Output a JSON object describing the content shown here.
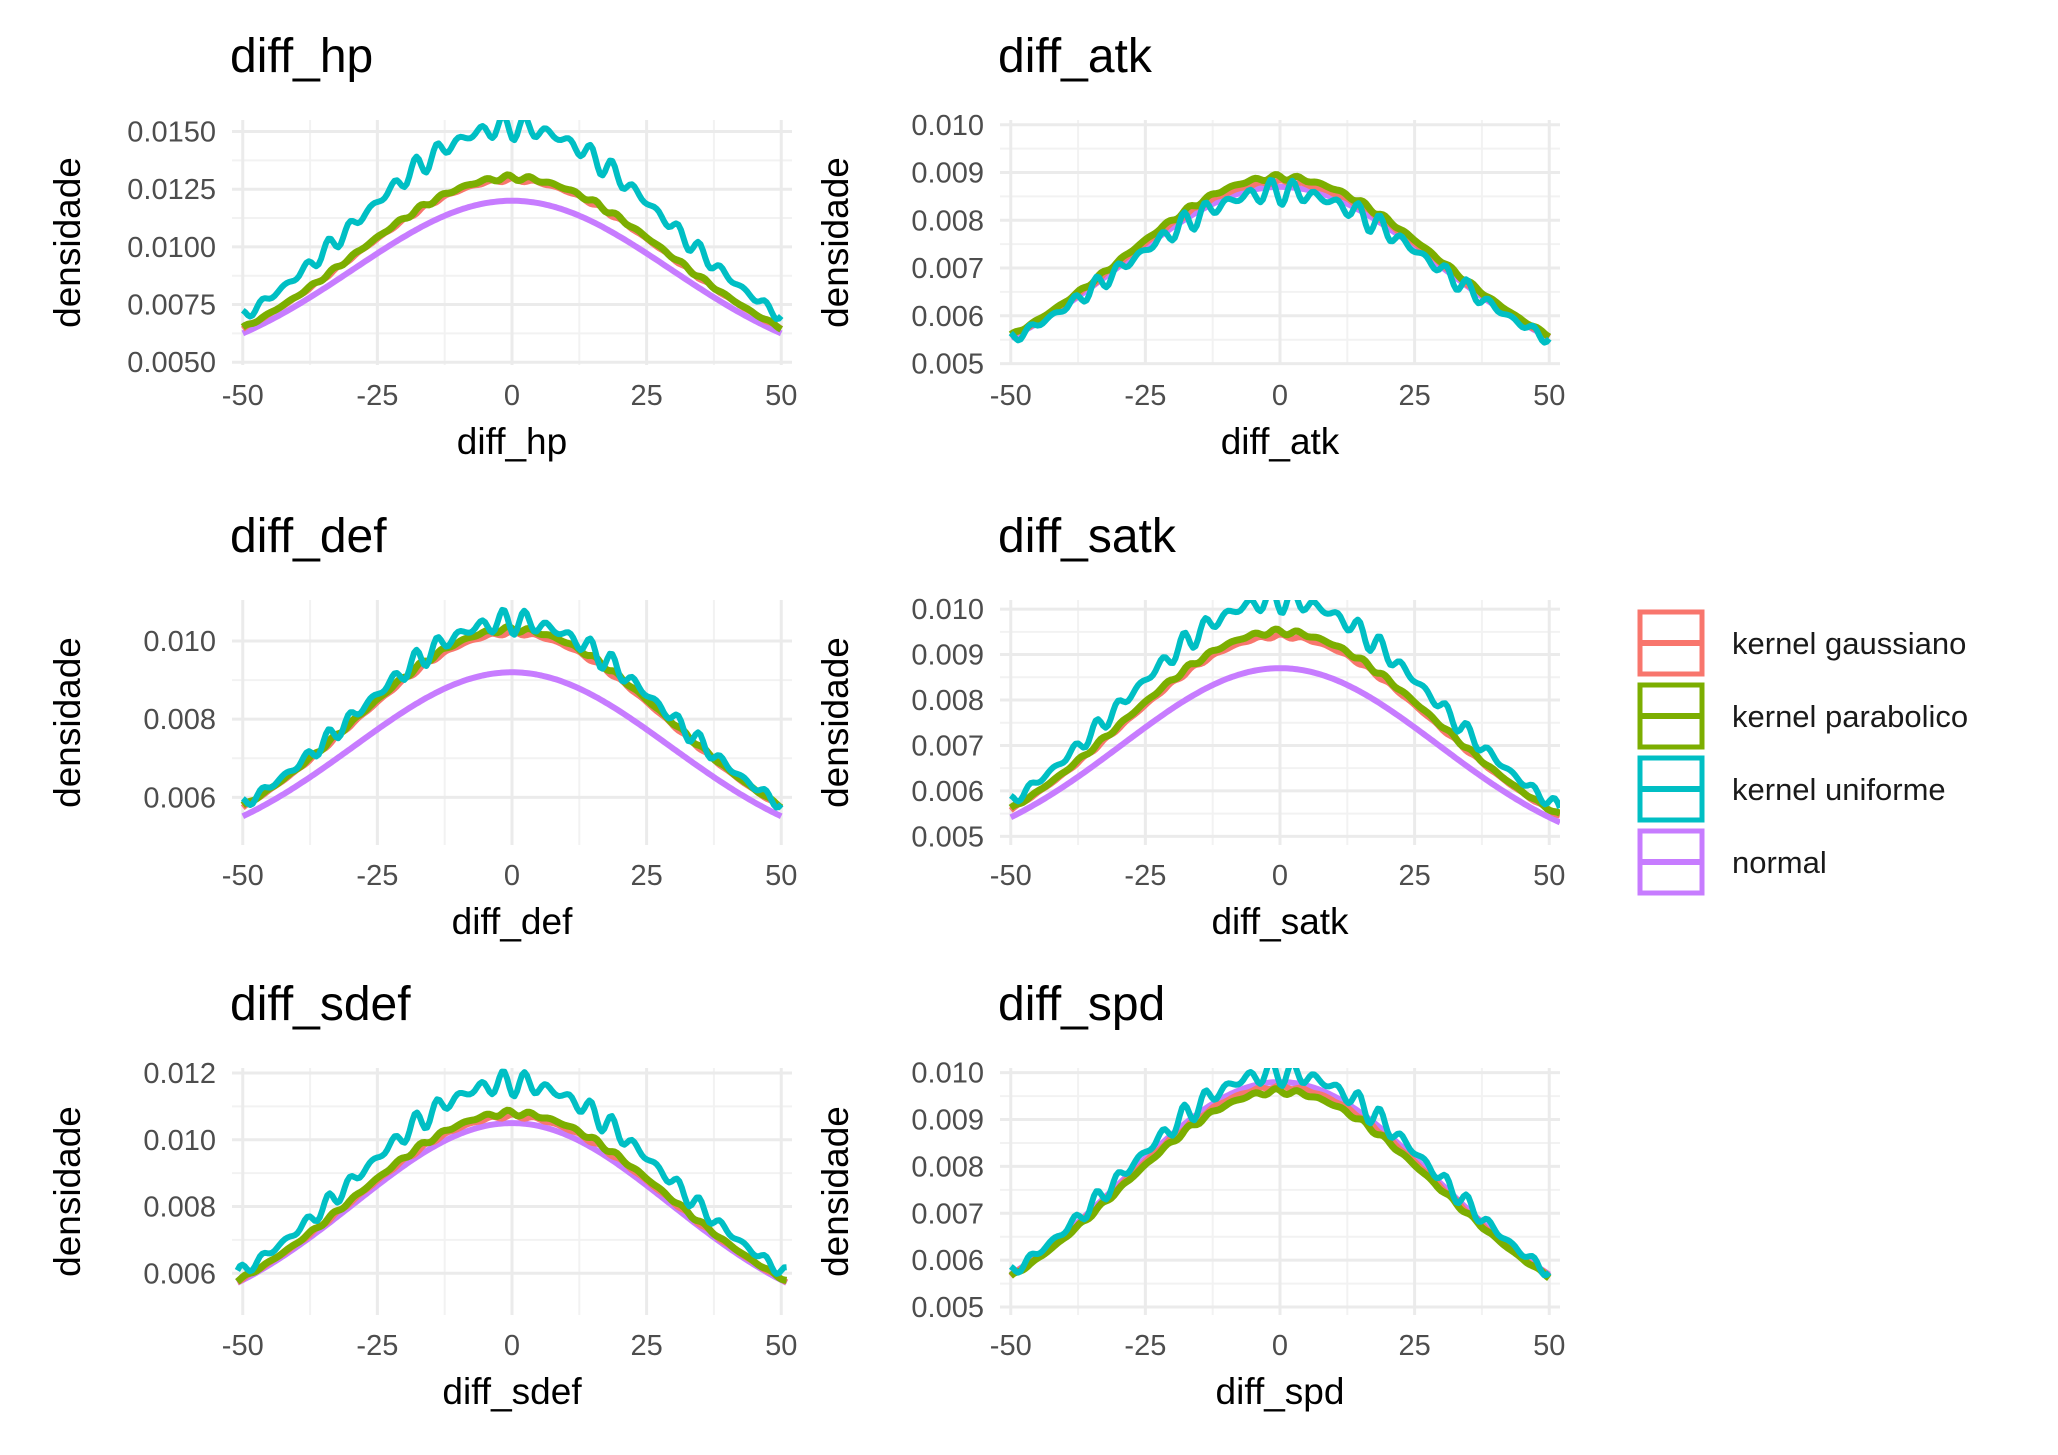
{
  "legend": {
    "items": [
      {
        "label": "kernel gaussiano",
        "color": "#F8766D"
      },
      {
        "label": "kernel parabolico",
        "color": "#7CAE00"
      },
      {
        "label": "kernel uniforme",
        "color": "#00BFC4"
      },
      {
        "label": "normal",
        "color": "#C77CFF"
      }
    ]
  },
  "chart_data": [
    {
      "type": "line",
      "title": "diff_hp",
      "xlabel": "diff_hp",
      "ylabel": "densidade",
      "xlim": [
        -52,
        52
      ],
      "ylim": [
        0.00488,
        0.0155
      ],
      "xticks": [
        -50,
        -25,
        0,
        25,
        50
      ],
      "yticks": [
        0.005,
        0.0075,
        0.01,
        0.0125,
        0.015
      ],
      "ytick_labels": [
        "0.0050",
        "0.0075",
        "0.0100",
        "0.0125",
        "0.0150"
      ],
      "grid": true,
      "x_range": [
        -50,
        50
      ],
      "series": [
        {
          "name": "kernel gaussiano",
          "peak": 0.0129
        },
        {
          "name": "kernel parabolico",
          "peak": 0.013
        },
        {
          "name": "kernel uniforme",
          "peak": 0.0152
        },
        {
          "name": "normal",
          "peak": 0.012
        }
      ]
    },
    {
      "type": "line",
      "title": "diff_atk",
      "xlabel": "diff_atk",
      "ylabel": "densidade",
      "xlim": [
        -52,
        52
      ],
      "ylim": [
        0.00497,
        0.0101
      ],
      "xticks": [
        -50,
        -25,
        0,
        25,
        50
      ],
      "yticks": [
        0.005,
        0.006,
        0.007,
        0.008,
        0.009,
        0.01
      ],
      "ytick_labels": [
        "0.005",
        "0.006",
        "0.007",
        "0.008",
        "0.009",
        "0.010"
      ],
      "grid": true,
      "x_range": [
        -50,
        50
      ],
      "series": [
        {
          "name": "kernel gaussiano",
          "peak": 0.0088
        },
        {
          "name": "kernel parabolico",
          "peak": 0.0089
        },
        {
          "name": "kernel uniforme",
          "peak": 0.0086
        },
        {
          "name": "normal",
          "peak": 0.0087
        }
      ]
    },
    {
      "type": "line",
      "title": "diff_def",
      "xlabel": "diff_def",
      "ylabel": "densidade",
      "xlim": [
        -52,
        52
      ],
      "ylim": [
        0.00478,
        0.01105
      ],
      "xticks": [
        -50,
        -25,
        0,
        25,
        50
      ],
      "yticks": [
        0.006,
        0.008,
        0.01
      ],
      "ytick_labels": [
        "0.006",
        "0.008",
        "0.010"
      ],
      "grid": true,
      "x_range": [
        -50,
        50
      ],
      "series": [
        {
          "name": "kernel gaussiano",
          "peak": 0.0102
        },
        {
          "name": "kernel parabolico",
          "peak": 0.0103
        },
        {
          "name": "kernel uniforme",
          "peak": 0.0105
        },
        {
          "name": "normal",
          "peak": 0.0092
        }
      ]
    },
    {
      "type": "line",
      "title": "diff_satk",
      "xlabel": "diff_satk",
      "ylabel": "densidade",
      "xlim": [
        -52,
        52
      ],
      "ylim": [
        0.00481,
        0.0102
      ],
      "xticks": [
        -50,
        -25,
        0,
        25,
        50
      ],
      "yticks": [
        0.005,
        0.006,
        0.007,
        0.008,
        0.009,
        0.01
      ],
      "ytick_labels": [
        "0.005",
        "0.006",
        "0.007",
        "0.008",
        "0.009",
        "0.010"
      ],
      "grid": true,
      "x_range": [
        -50,
        52
      ],
      "series": [
        {
          "name": "kernel gaussiano",
          "peak": 0.0094
        },
        {
          "name": "kernel parabolico",
          "peak": 0.0095
        },
        {
          "name": "kernel uniforme",
          "peak": 0.0102
        },
        {
          "name": "normal",
          "peak": 0.0087
        }
      ]
    },
    {
      "type": "line",
      "title": "diff_sdef",
      "xlabel": "diff_sdef",
      "ylabel": "densidade",
      "xlim": [
        -52,
        52
      ],
      "ylim": [
        0.00475,
        0.01215
      ],
      "xticks": [
        -50,
        -25,
        0,
        25,
        50
      ],
      "yticks": [
        0.006,
        0.008,
        0.01,
        0.012
      ],
      "ytick_labels": [
        "0.006",
        "0.008",
        "0.010",
        "0.012"
      ],
      "grid": true,
      "x_range": [
        -51,
        51
      ],
      "series": [
        {
          "name": "kernel gaussiano",
          "peak": 0.0107
        },
        {
          "name": "kernel parabolico",
          "peak": 0.0108
        },
        {
          "name": "kernel uniforme",
          "peak": 0.0117
        },
        {
          "name": "normal",
          "peak": 0.0105
        }
      ]
    },
    {
      "type": "line",
      "title": "diff_spd",
      "xlabel": "diff_spd",
      "ylabel": "densidade",
      "xlim": [
        -52,
        52
      ],
      "ylim": [
        0.00483,
        0.0101
      ],
      "xticks": [
        -50,
        -25,
        0,
        25,
        50
      ],
      "yticks": [
        0.005,
        0.006,
        0.007,
        0.008,
        0.009,
        0.01
      ],
      "ytick_labels": [
        "0.005",
        "0.006",
        "0.007",
        "0.008",
        "0.009",
        "0.010"
      ],
      "grid": true,
      "x_range": [
        -50,
        50
      ],
      "series": [
        {
          "name": "kernel gaussiano",
          "peak": 0.0097
        },
        {
          "name": "kernel parabolico",
          "peak": 0.0096
        },
        {
          "name": "kernel uniforme",
          "peak": 0.01
        },
        {
          "name": "normal",
          "peak": 0.0098
        }
      ]
    }
  ]
}
